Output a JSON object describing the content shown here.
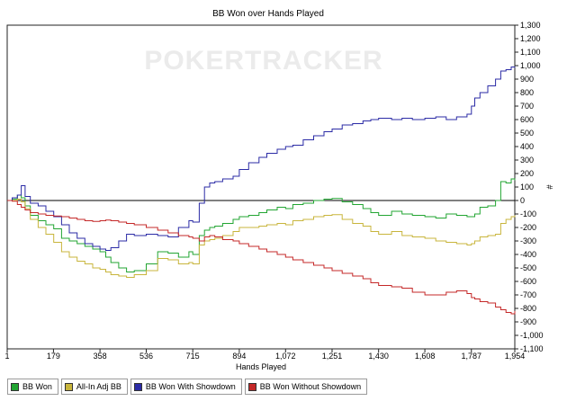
{
  "chart_data": {
    "type": "line",
    "title": "BB Won over Hands Played",
    "xlabel": "Hands Played",
    "ylabel": "#",
    "watermark": "POKERTRACKER",
    "xlim": [
      1,
      1954
    ],
    "ylim": [
      -1100,
      1300
    ],
    "x_ticks": [
      "1",
      "179",
      "358",
      "536",
      "715",
      "894",
      "1,072",
      "1,251",
      "1,430",
      "1,608",
      "1,787",
      "1,954"
    ],
    "x_tick_values": [
      1,
      179,
      358,
      536,
      715,
      894,
      1072,
      1251,
      1430,
      1608,
      1787,
      1954
    ],
    "y_ticks": [
      "1,300",
      "1,200",
      "1,100",
      "1,000",
      "900",
      "800",
      "700",
      "600",
      "500",
      "400",
      "300",
      "200",
      "100",
      "0",
      "-100",
      "-200",
      "-300",
      "-400",
      "-500",
      "-600",
      "-700",
      "-800",
      "-900",
      "-1,000",
      "-1,100"
    ],
    "y_tick_values": [
      1300,
      1200,
      1100,
      1000,
      900,
      800,
      700,
      600,
      500,
      400,
      300,
      200,
      100,
      0,
      -100,
      -200,
      -300,
      -400,
      -500,
      -600,
      -700,
      -800,
      -900,
      -1000,
      -1100
    ],
    "grid": false,
    "legend_position": "bottom",
    "series": [
      {
        "name": "BB Won",
        "color": "#22a532",
        "x": [
          1,
          20,
          40,
          55,
          70,
          90,
          120,
          150,
          180,
          210,
          240,
          270,
          300,
          330,
          358,
          380,
          400,
          430,
          460,
          490,
          536,
          580,
          620,
          660,
          700,
          715,
          740,
          760,
          780,
          800,
          830,
          870,
          894,
          930,
          970,
          1000,
          1040,
          1072,
          1100,
          1140,
          1180,
          1220,
          1251,
          1290,
          1330,
          1370,
          1400,
          1430,
          1480,
          1520,
          1560,
          1608,
          1650,
          1690,
          1730,
          1770,
          1787,
          1800,
          1820,
          1850,
          1880,
          1900,
          1920,
          1940,
          1954
        ],
        "y": [
          0,
          10,
          40,
          20,
          -40,
          -110,
          -150,
          -180,
          -210,
          -280,
          -300,
          -320,
          -340,
          -360,
          -380,
          -420,
          -460,
          -500,
          -530,
          -520,
          -470,
          -380,
          -390,
          -420,
          -380,
          -400,
          -260,
          -220,
          -200,
          -190,
          -170,
          -140,
          -120,
          -110,
          -90,
          -70,
          -50,
          -60,
          -30,
          -20,
          0,
          10,
          15,
          -10,
          -30,
          -60,
          -90,
          -110,
          -80,
          -100,
          -110,
          -120,
          -130,
          -100,
          -110,
          -120,
          -120,
          -100,
          -50,
          -40,
          0,
          140,
          130,
          160,
          150
        ]
      },
      {
        "name": "All-In Adj BB",
        "color": "#c8b53c",
        "x": [
          1,
          20,
          40,
          55,
          70,
          90,
          120,
          150,
          180,
          210,
          240,
          270,
          300,
          330,
          358,
          380,
          400,
          430,
          460,
          490,
          536,
          580,
          620,
          660,
          700,
          715,
          740,
          760,
          780,
          800,
          830,
          870,
          894,
          930,
          970,
          1000,
          1040,
          1072,
          1100,
          1140,
          1180,
          1220,
          1251,
          1290,
          1330,
          1370,
          1400,
          1430,
          1480,
          1520,
          1560,
          1608,
          1650,
          1690,
          1730,
          1770,
          1787,
          1800,
          1820,
          1850,
          1880,
          1900,
          1920,
          1940,
          1954
        ],
        "y": [
          0,
          0,
          10,
          -10,
          -60,
          -140,
          -200,
          -250,
          -310,
          -380,
          -420,
          -450,
          -470,
          -500,
          -510,
          -530,
          -550,
          -560,
          -570,
          -550,
          -520,
          -430,
          -440,
          -470,
          -460,
          -470,
          -330,
          -300,
          -290,
          -280,
          -260,
          -230,
          -200,
          -200,
          -190,
          -180,
          -170,
          -180,
          -150,
          -140,
          -120,
          -110,
          -105,
          -140,
          -170,
          -190,
          -230,
          -250,
          -230,
          -260,
          -270,
          -280,
          -300,
          -310,
          -320,
          -330,
          -320,
          -300,
          -270,
          -260,
          -250,
          -170,
          -140,
          -120,
          -110
        ]
      },
      {
        "name": "BB Won With Showdown",
        "color": "#2b2ba6",
        "x": [
          1,
          20,
          40,
          55,
          70,
          90,
          120,
          150,
          180,
          210,
          240,
          270,
          300,
          330,
          358,
          380,
          400,
          430,
          460,
          490,
          536,
          580,
          620,
          660,
          700,
          715,
          740,
          760,
          780,
          800,
          830,
          870,
          894,
          930,
          970,
          1000,
          1040,
          1072,
          1100,
          1140,
          1180,
          1220,
          1251,
          1290,
          1330,
          1370,
          1400,
          1430,
          1480,
          1520,
          1560,
          1608,
          1650,
          1690,
          1730,
          1770,
          1787,
          1800,
          1820,
          1850,
          1880,
          1900,
          1920,
          1940,
          1954
        ],
        "y": [
          0,
          20,
          40,
          110,
          30,
          -20,
          -40,
          -80,
          -120,
          -180,
          -240,
          -280,
          -320,
          -340,
          -360,
          -370,
          -350,
          -300,
          -250,
          -260,
          -250,
          -260,
          -270,
          -200,
          -150,
          -160,
          -20,
          100,
          130,
          140,
          160,
          180,
          230,
          280,
          320,
          350,
          380,
          400,
          410,
          450,
          480,
          510,
          530,
          560,
          570,
          590,
          600,
          610,
          600,
          610,
          600,
          610,
          620,
          600,
          620,
          640,
          700,
          760,
          800,
          850,
          900,
          960,
          970,
          990,
          985
        ]
      },
      {
        "name": "BB Won Without Showdown",
        "color": "#c42828",
        "x": [
          1,
          20,
          40,
          55,
          70,
          90,
          120,
          150,
          180,
          210,
          240,
          270,
          300,
          330,
          358,
          380,
          400,
          430,
          460,
          490,
          536,
          580,
          620,
          660,
          700,
          715,
          740,
          760,
          780,
          800,
          830,
          870,
          894,
          930,
          970,
          1000,
          1040,
          1072,
          1100,
          1140,
          1180,
          1220,
          1251,
          1290,
          1330,
          1370,
          1400,
          1430,
          1480,
          1520,
          1560,
          1608,
          1650,
          1690,
          1730,
          1770,
          1787,
          1800,
          1820,
          1850,
          1880,
          1900,
          1920,
          1940,
          1954
        ],
        "y": [
          0,
          -5,
          -30,
          -50,
          -70,
          -90,
          -100,
          -110,
          -115,
          -120,
          -130,
          -140,
          -150,
          -155,
          -150,
          -145,
          -150,
          -160,
          -170,
          -180,
          -200,
          -220,
          -240,
          -260,
          -270,
          -280,
          -300,
          -270,
          -260,
          -270,
          -290,
          -300,
          -320,
          -340,
          -360,
          -380,
          -400,
          -420,
          -440,
          -460,
          -480,
          -500,
          -520,
          -540,
          -560,
          -580,
          -610,
          -630,
          -640,
          -650,
          -680,
          -700,
          -700,
          -680,
          -670,
          -690,
          -720,
          -730,
          -750,
          -760,
          -790,
          -810,
          -830,
          -840,
          -820
        ]
      }
    ]
  }
}
